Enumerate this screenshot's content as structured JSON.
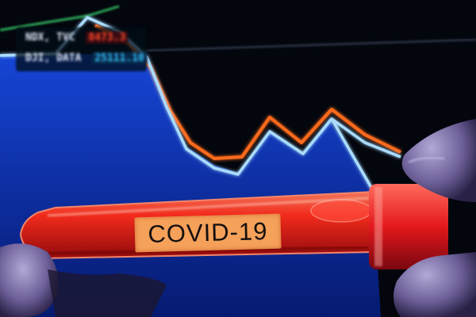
{
  "photo": {
    "tube_label": "COVID-19",
    "tickers": [
      {
        "name": "NDX, TVC",
        "value": "8473.3",
        "value_color": "#ff4a2a"
      },
      {
        "name": "DJI, DATA",
        "value": "25111.10",
        "value_color": "#39c6ff"
      }
    ],
    "colors": {
      "screen_fill": "#0a2fa6",
      "orange_line": "#ff6a1e",
      "blue_line": "#a9dcff",
      "tube_liquid": "#ff2a14",
      "label_bg": "#f5a15a",
      "glove": "#7a6ea6"
    }
  }
}
